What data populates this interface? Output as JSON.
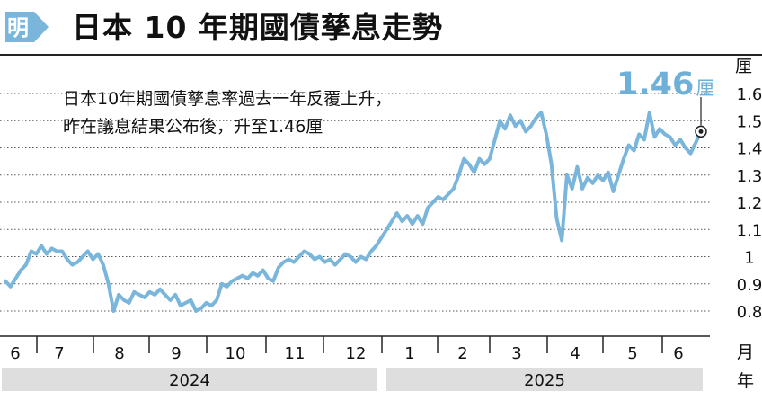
{
  "header": {
    "logo_char": "明",
    "title": "日本 10 年期國債孳息走勢"
  },
  "annotation": "日本10年期國債孳息率過去一年反覆上升，昨在議息結果公布後，升至1.46厘",
  "callout": {
    "value": "1.46",
    "unit": "厘"
  },
  "colors": {
    "line": "#7ab6dc",
    "callout": "#6fb0d9",
    "year_band": "#dedede"
  },
  "chart_data": {
    "type": "line",
    "title": "日本 10 年期國債孳息走勢",
    "y_unit": "厘",
    "x_unit_month": "月",
    "x_unit_year": "年",
    "ylim": [
      0.75,
      1.65
    ],
    "y_ticks": [
      0.8,
      0.9,
      1.0,
      1.1,
      1.2,
      1.3,
      1.4,
      1.5,
      1.6
    ],
    "y_tick_labels": [
      "0.8",
      "0.9",
      "1",
      "1.1",
      "1.2",
      "1.3",
      "1.4",
      "1.5",
      "1.6"
    ],
    "grid": "horizontal dotted",
    "months": [
      "6",
      "7",
      "8",
      "9",
      "10",
      "11",
      "12",
      "1",
      "2",
      "3",
      "4",
      "5",
      "6"
    ],
    "years": [
      "2024",
      "2025"
    ],
    "series": [
      {
        "values": [
          0.91,
          0.89,
          0.92,
          0.95,
          0.97,
          1.02,
          1.01,
          1.04,
          1.01,
          1.03,
          1.02,
          1.02,
          0.99,
          0.97,
          0.98,
          1.0,
          1.02,
          0.99,
          1.01,
          0.97,
          0.9,
          0.8,
          0.86,
          0.84,
          0.83,
          0.87,
          0.86,
          0.85,
          0.87,
          0.86,
          0.88,
          0.86,
          0.84,
          0.86,
          0.82,
          0.83,
          0.84,
          0.8,
          0.81,
          0.83,
          0.82,
          0.84,
          0.9,
          0.89,
          0.91,
          0.92,
          0.93,
          0.92,
          0.94,
          0.93,
          0.95,
          0.92,
          0.91,
          0.96,
          0.98,
          0.99,
          0.98,
          1.0,
          1.02,
          1.01,
          0.99,
          1.0,
          0.98,
          0.99,
          0.97,
          0.99,
          1.01,
          1.0,
          0.98,
          1.0,
          0.99,
          1.02,
          1.04,
          1.07,
          1.1,
          1.13,
          1.16,
          1.13,
          1.15,
          1.12,
          1.15,
          1.12,
          1.18,
          1.2,
          1.22,
          1.21,
          1.23,
          1.25,
          1.3,
          1.36,
          1.34,
          1.31,
          1.36,
          1.34,
          1.36,
          1.43,
          1.5,
          1.47,
          1.52,
          1.48,
          1.5,
          1.46,
          1.48,
          1.51,
          1.53,
          1.45,
          1.34,
          1.14,
          1.06,
          1.3,
          1.25,
          1.33,
          1.25,
          1.29,
          1.27,
          1.3,
          1.28,
          1.31,
          1.24,
          1.3,
          1.36,
          1.41,
          1.39,
          1.45,
          1.43,
          1.53,
          1.44,
          1.47,
          1.45,
          1.44,
          1.41,
          1.43,
          1.4,
          1.38,
          1.42,
          1.46
        ]
      }
    ]
  }
}
